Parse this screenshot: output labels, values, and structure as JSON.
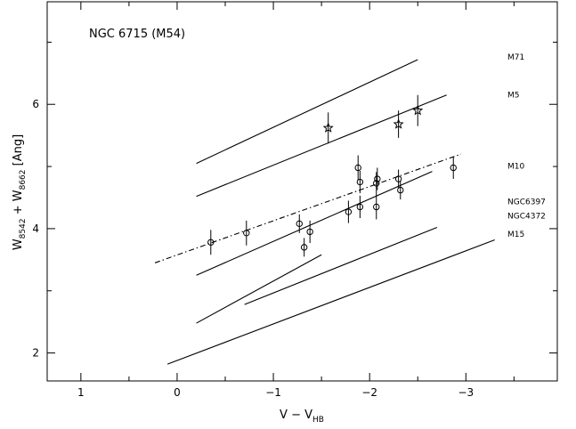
{
  "chart_data": {
    "type": "scatter",
    "title": "NGC 6715 (M54)",
    "xlabel": "V − V",
    "xlabel_sub": "HB",
    "ylabel_parts": [
      {
        "t": "W",
        "sub": false
      },
      {
        "t": "8542",
        "sub": true
      },
      {
        "t": " + W",
        "sub": false
      },
      {
        "t": "8662",
        "sub": true
      },
      {
        "t": " [Ang]",
        "sub": false
      }
    ],
    "xlim": [
      1.35,
      -3.95
    ],
    "ylim": [
      1.55,
      7.65
    ],
    "x_ticks": [
      1,
      0,
      -1,
      -2,
      -3
    ],
    "x_tick_labels": [
      "1",
      "0",
      "−1",
      "−2",
      "−3"
    ],
    "y_ticks": [
      2,
      4,
      6
    ],
    "y_tick_labels": [
      "2",
      "4",
      "6"
    ],
    "reference_lines": [
      {
        "name": "M71",
        "x": [
          -0.2,
          -2.5
        ],
        "y": [
          5.05,
          6.72
        ],
        "label_y": 6.78
      },
      {
        "name": "M5",
        "x": [
          -0.2,
          -2.8
        ],
        "y": [
          4.52,
          6.15
        ],
        "label_y": 6.17
      },
      {
        "name": "M10",
        "x": [
          -0.2,
          -2.65
        ],
        "y": [
          3.25,
          4.92
        ],
        "label_y": 5.02
      },
      {
        "name": "NGC6397",
        "x": [
          -0.2,
          -1.5
        ],
        "y": [
          2.48,
          3.58
        ],
        "label_y": 4.45
      },
      {
        "name": "NGC4372",
        "x": [
          -0.7,
          -2.7
        ],
        "y": [
          2.78,
          4.02
        ],
        "label_y": 4.22
      },
      {
        "name": "M15",
        "x": [
          0.1,
          -3.3
        ],
        "y": [
          1.82,
          3.82
        ],
        "label_y": 3.93
      }
    ],
    "fit_line": {
      "x": [
        0.23,
        -2.95
      ],
      "y": [
        3.45,
        5.2
      ]
    },
    "series": [
      {
        "marker": "circle",
        "points": [
          {
            "x": -0.35,
            "y": 3.78,
            "err": 0.2
          },
          {
            "x": -0.72,
            "y": 3.93,
            "err": 0.2
          },
          {
            "x": -1.27,
            "y": 4.08,
            "err": 0.15
          },
          {
            "x": -1.32,
            "y": 3.7,
            "err": 0.15
          },
          {
            "x": -1.38,
            "y": 3.95,
            "err": 0.18
          },
          {
            "x": -1.78,
            "y": 4.27,
            "err": 0.18
          },
          {
            "x": -1.88,
            "y": 4.98,
            "err": 0.2
          },
          {
            "x": -1.9,
            "y": 4.75,
            "err": 0.18
          },
          {
            "x": -1.9,
            "y": 4.35,
            "err": 0.18
          },
          {
            "x": -2.07,
            "y": 4.35,
            "err": 0.2
          },
          {
            "x": -2.07,
            "y": 4.73,
            "err": 0.18
          },
          {
            "x": -2.08,
            "y": 4.8,
            "err": 0.18
          },
          {
            "x": -2.3,
            "y": 4.8,
            "err": 0.15
          },
          {
            "x": -2.32,
            "y": 4.62,
            "err": 0.15
          },
          {
            "x": -2.87,
            "y": 4.98,
            "err": 0.18
          }
        ]
      },
      {
        "marker": "star",
        "points": [
          {
            "x": -1.57,
            "y": 5.62,
            "err": 0.25
          },
          {
            "x": -2.3,
            "y": 5.68,
            "err": 0.22
          },
          {
            "x": -2.5,
            "y": 5.9,
            "err": 0.25
          }
        ]
      }
    ]
  }
}
